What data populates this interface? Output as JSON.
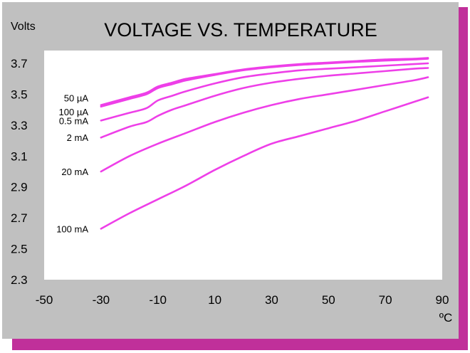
{
  "colors": {
    "panel": "#c0c0c0",
    "shadow": "#c0309a",
    "plot_bg": "#ffffff",
    "line": "#ee3fe8",
    "text": "#000000"
  },
  "chart_data": {
    "type": "line",
    "title": "VOLTAGE VS. TEMPERATURE",
    "ylabel": "Volts",
    "xlabel": "ºC",
    "xlim": [
      -50,
      90
    ],
    "ylim": [
      2.3,
      3.7
    ],
    "x_ticks": [
      -50,
      -30,
      -10,
      10,
      30,
      50,
      70,
      90
    ],
    "x_tick_labels": [
      "-50",
      "-30",
      "-10",
      "10",
      "30",
      "50",
      "70",
      "90"
    ],
    "y_ticks": [
      3.7,
      3.5,
      3.3,
      3.1,
      2.9,
      2.7,
      2.5,
      2.3
    ],
    "y_tick_labels": [
      "3.7",
      "3.5",
      "3.3",
      "3.1",
      "2.9",
      "2.7",
      "2.5",
      "2.3"
    ],
    "grid": false,
    "series": [
      {
        "name": "50 µA",
        "x": [
          -30,
          -20,
          -14,
          -10,
          -5,
          0,
          10,
          20,
          30,
          40,
          50,
          60,
          70,
          80,
          85
        ],
        "values": [
          3.43,
          3.48,
          3.51,
          3.55,
          3.575,
          3.6,
          3.63,
          3.66,
          3.68,
          3.695,
          3.705,
          3.715,
          3.725,
          3.73,
          3.735
        ]
      },
      {
        "name": "100 µA",
        "x": [
          -30,
          -20,
          -14,
          -10,
          -5,
          0,
          10,
          20,
          30,
          40,
          50,
          60,
          70,
          80,
          85
        ],
        "values": [
          3.42,
          3.47,
          3.5,
          3.54,
          3.565,
          3.59,
          3.625,
          3.655,
          3.675,
          3.69,
          3.7,
          3.71,
          3.718,
          3.725,
          3.73
        ]
      },
      {
        "name": "0.5 mA",
        "x": [
          -30,
          -20,
          -14,
          -10,
          -5,
          0,
          10,
          20,
          30,
          40,
          50,
          60,
          70,
          80,
          85
        ],
        "values": [
          3.33,
          3.38,
          3.41,
          3.46,
          3.49,
          3.52,
          3.57,
          3.61,
          3.635,
          3.655,
          3.665,
          3.675,
          3.685,
          3.695,
          3.7
        ]
      },
      {
        "name": "2 mA",
        "x": [
          -30,
          -20,
          -14,
          -10,
          -5,
          0,
          10,
          20,
          30,
          40,
          50,
          60,
          70,
          80,
          85
        ],
        "values": [
          3.22,
          3.29,
          3.32,
          3.36,
          3.4,
          3.43,
          3.49,
          3.54,
          3.575,
          3.6,
          3.62,
          3.635,
          3.65,
          3.665,
          3.67
        ]
      },
      {
        "name": "20 mA",
        "x": [
          -30,
          -20,
          -10,
          0,
          10,
          20,
          30,
          40,
          50,
          60,
          70,
          80,
          85
        ],
        "values": [
          3.0,
          3.1,
          3.18,
          3.25,
          3.32,
          3.38,
          3.43,
          3.47,
          3.5,
          3.53,
          3.56,
          3.59,
          3.61
        ]
      },
      {
        "name": "100 mA",
        "x": [
          -30,
          -20,
          -10,
          0,
          10,
          20,
          30,
          40,
          50,
          60,
          70,
          80,
          85
        ],
        "values": [
          2.63,
          2.73,
          2.82,
          2.91,
          3.01,
          3.1,
          3.18,
          3.23,
          3.28,
          3.33,
          3.39,
          3.45,
          3.48
        ]
      }
    ]
  }
}
